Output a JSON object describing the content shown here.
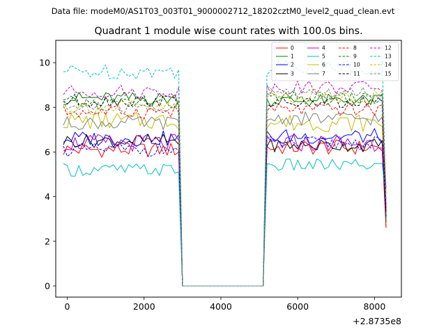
{
  "suptitle": "Data file: modeM0/AS1T03_003T01_9000002712_18202cztM0_level2_quad_clean.evt",
  "chart_data": {
    "type": "line",
    "title": "Quadrant 1 module wise count rates with 100.0s bins.",
    "xlabel": "",
    "ylabel": "",
    "x_offset_label": "+2.8735e8",
    "xlim": [
      -300,
      8700
    ],
    "ylim": [
      -0.5,
      11.0
    ],
    "xticks": [
      0,
      2000,
      4000,
      6000,
      8000
    ],
    "yticks": [
      0,
      2,
      4,
      6,
      8,
      10
    ],
    "grid": false,
    "legend_placement": "top-right",
    "legend_columns": 4,
    "segments": [
      {
        "start": -100,
        "end": 2900,
        "step": 100
      },
      {
        "start": 5200,
        "end": 8200,
        "step": 100
      }
    ],
    "gap": {
      "start": 3000,
      "end": 5100,
      "value": 0
    },
    "drop_end": {
      "x": 8300
    },
    "series": [
      {
        "name": "0",
        "color": "#ff0000",
        "dash": false,
        "level_pre": 6.1,
        "level_post": 6.2,
        "amplitude": 0.35
      },
      {
        "name": "1",
        "color": "#008000",
        "dash": false,
        "level_pre": 8.4,
        "level_post": 8.3,
        "amplitude": 0.3
      },
      {
        "name": "2",
        "color": "#0000ff",
        "dash": false,
        "level_pre": 6.6,
        "level_post": 6.7,
        "amplitude": 0.35
      },
      {
        "name": "3",
        "color": "#000000",
        "dash": false,
        "level_pre": 6.5,
        "level_post": 6.3,
        "amplitude": 0.3
      },
      {
        "name": "4",
        "color": "#bf00bf",
        "dash": false,
        "level_pre": 6.4,
        "level_post": 6.4,
        "amplitude": 0.4
      },
      {
        "name": "5",
        "color": "#00bfbf",
        "dash": false,
        "level_pre": 5.2,
        "level_post": 5.4,
        "amplitude": 0.3
      },
      {
        "name": "6",
        "color": "#bfbf00",
        "dash": false,
        "level_pre": 7.4,
        "level_post": 7.3,
        "amplitude": 0.4
      },
      {
        "name": "7",
        "color": "#7f7f7f",
        "dash": false,
        "level_pre": 7.3,
        "level_post": 7.5,
        "amplitude": 0.3
      },
      {
        "name": "8",
        "color": "#ff0000",
        "dash": true,
        "level_pre": 7.8,
        "level_post": 7.9,
        "amplitude": 0.3
      },
      {
        "name": "9",
        "color": "#008000",
        "dash": true,
        "level_pre": 8.2,
        "level_post": 8.4,
        "amplitude": 0.3
      },
      {
        "name": "10",
        "color": "#0000ff",
        "dash": true,
        "level_pre": 6.1,
        "level_post": 6.4,
        "amplitude": 0.3
      },
      {
        "name": "11",
        "color": "#000000",
        "dash": true,
        "level_pre": 8.3,
        "level_post": 8.2,
        "amplitude": 0.3
      },
      {
        "name": "12",
        "color": "#bf00bf",
        "dash": true,
        "level_pre": 8.7,
        "level_post": 8.9,
        "amplitude": 0.3
      },
      {
        "name": "13",
        "color": "#00bfbf",
        "dash": true,
        "level_pre": 9.6,
        "level_post": 9.8,
        "amplitude": 0.35
      },
      {
        "name": "14",
        "color": "#bfbf00",
        "dash": true,
        "level_pre": 8.0,
        "level_post": 8.5,
        "amplitude": 0.35
      },
      {
        "name": "15",
        "color": "#7f7f7f",
        "dash": true,
        "level_pre": 8.0,
        "level_post": 8.7,
        "amplitude": 0.3
      }
    ]
  }
}
